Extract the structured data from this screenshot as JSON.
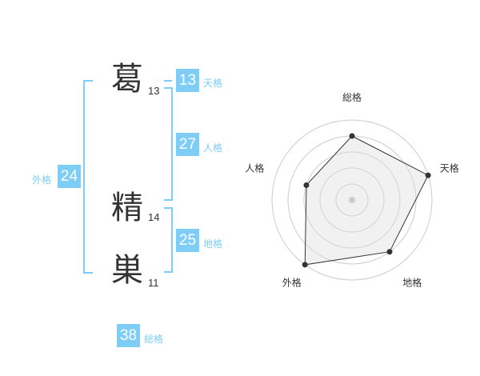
{
  "name": {
    "chars": [
      {
        "char": "葛",
        "strokes": "13"
      },
      {
        "char": "精",
        "strokes": "14"
      },
      {
        "char": "巣",
        "strokes": "11"
      }
    ]
  },
  "kaku": {
    "tenkaku": {
      "value": "13",
      "label": "天格"
    },
    "jinkaku": {
      "value": "27",
      "label": "人格"
    },
    "chikaku": {
      "value": "25",
      "label": "地格"
    },
    "gaikaku": {
      "value": "24",
      "label": "外格"
    },
    "soukaku": {
      "value": "38",
      "label": "総格"
    }
  },
  "colors": {
    "accent": "#7dcdf7",
    "text": "#333333",
    "fill": "#f0f0f0"
  },
  "chart_data": {
    "type": "radar",
    "categories": [
      "総格",
      "天格",
      "地格",
      "外格",
      "人格"
    ],
    "values": [
      4,
      5,
      4,
      5,
      3
    ],
    "rmax": 5,
    "rings": 5,
    "grid": true
  }
}
